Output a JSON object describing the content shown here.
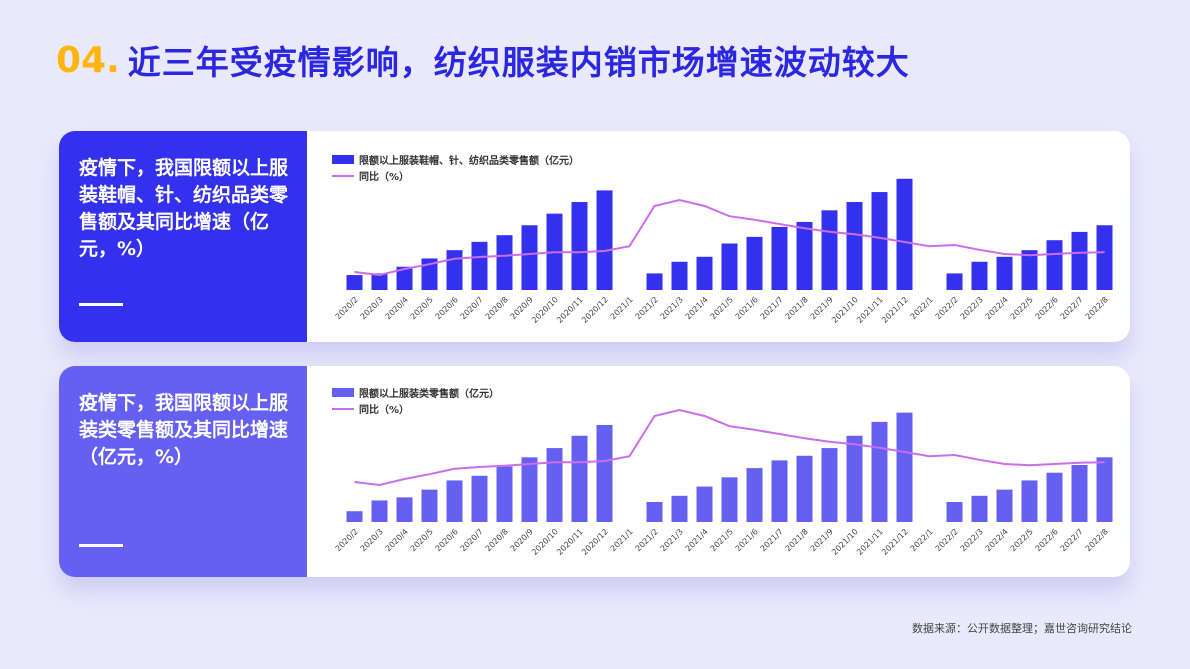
{
  "header": {
    "number": "04.",
    "title": "近三年受疫情影响，纺织服装内销市场增速波动较大"
  },
  "panels": [
    {
      "text": "疫情下，我国限额以上服装鞋帽、针、纺织品类零售额及其同比增速（亿元，%）"
    },
    {
      "text": "疫情下，我国限额以上服装类零售额及其同比增速（亿元，%）"
    }
  ],
  "source": "数据来源：公开数据整理；嘉世咨询研究结论",
  "colors": {
    "accent": "#2b27e0",
    "number": "#ffb511",
    "bar1": "#3431ee",
    "bar2": "#6660f2",
    "line": "#cc6df0"
  },
  "chart_data": [
    {
      "type": "bar",
      "categories": [
        "2020/2",
        "2020/3",
        "2020/4",
        "2020/5",
        "2020/6",
        "2020/7",
        "2020/8",
        "2020/9",
        "2020/10",
        "2020/11",
        "2020/12",
        "2021/1",
        "2021/2",
        "2021/3",
        "2021/4",
        "2021/5",
        "2021/6",
        "2021/7",
        "2021/8",
        "2021/9",
        "2021/10",
        "2021/11",
        "2021/12",
        "2022/1",
        "2022/2",
        "2022/3",
        "2022/4",
        "2022/5",
        "2022/6",
        "2022/7",
        "2022/8"
      ],
      "series": [
        {
          "name": "限额以上服装鞋帽、针、纺织品类零售额（亿元）",
          "type": "bar",
          "values": [
            9,
            10,
            14,
            19,
            24,
            29,
            33,
            39,
            46,
            53,
            60,
            null,
            10,
            17,
            20,
            28,
            32,
            38,
            41,
            48,
            53,
            59,
            67,
            null,
            10,
            17,
            20,
            24,
            30,
            35,
            39
          ]
        },
        {
          "name": "同比（%）",
          "type": "line",
          "values": [
            -25,
            -30,
            -20,
            -12,
            -3,
            0,
            2,
            5,
            8,
            8,
            10,
            18,
            85,
            95,
            85,
            68,
            62,
            55,
            48,
            42,
            38,
            32,
            25,
            18,
            20,
            12,
            5,
            3,
            5,
            7,
            8
          ]
        }
      ]
    },
    {
      "type": "bar",
      "categories": [
        "2020/2",
        "2020/3",
        "2020/4",
        "2020/5",
        "2020/6",
        "2020/7",
        "2020/8",
        "2020/9",
        "2020/10",
        "2020/11",
        "2020/12",
        "2021/1",
        "2021/2",
        "2021/3",
        "2021/4",
        "2021/5",
        "2021/6",
        "2021/7",
        "2021/8",
        "2021/9",
        "2021/10",
        "2021/11",
        "2021/12",
        "2022/1",
        "2022/2",
        "2022/3",
        "2022/4",
        "2022/5",
        "2022/6",
        "2022/7",
        "2022/8"
      ],
      "series": [
        {
          "name": "限额以上服装类零售额（亿元）",
          "type": "bar",
          "values": [
            7,
            14,
            16,
            21,
            27,
            30,
            36,
            42,
            48,
            56,
            63,
            null,
            13,
            17,
            23,
            29,
            35,
            40,
            43,
            48,
            56,
            65,
            71,
            null,
            13,
            17,
            21,
            27,
            32,
            37,
            42
          ]
        },
        {
          "name": "同比（%）",
          "type": "line",
          "values": [
            -25,
            -30,
            -20,
            -12,
            -3,
            0,
            2,
            5,
            8,
            8,
            10,
            18,
            85,
            95,
            85,
            68,
            62,
            55,
            48,
            42,
            38,
            32,
            25,
            18,
            20,
            12,
            5,
            3,
            5,
            7,
            8
          ]
        }
      ]
    }
  ]
}
